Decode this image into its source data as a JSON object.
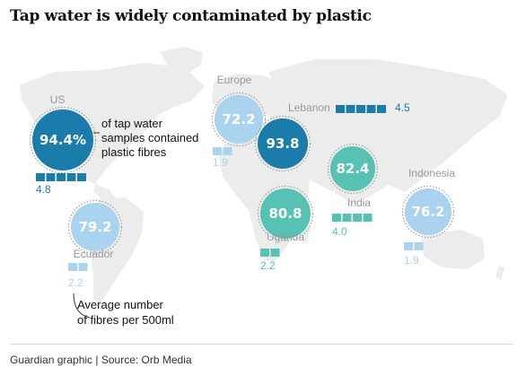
{
  "title": "Tap water is widely contaminated by plastic",
  "footer": "Guardian graphic | Source: Orb Media",
  "annotations": {
    "percent_note": [
      "of tap water",
      "samples contained",
      "plastic fibres"
    ],
    "fibres_note": [
      "Average number",
      "of fibres per 500ml"
    ]
  },
  "colors": {
    "map_land": "#ececec",
    "dark_blue": "#197caa",
    "mid_blue": "#2a8fc4",
    "light_blue": "#a9d3ee",
    "teal": "#56c2b4",
    "label_grey": "#999999"
  },
  "chart_data": {
    "type": "bubble-map",
    "title": "Tap water is widely contaminated by plastic",
    "metric_primary": "% of tap water samples contained plastic fibres",
    "metric_secondary": "Average number of fibres per 500ml",
    "series": [
      {
        "name": "US",
        "percent": "94.4%",
        "fibres": "4.8",
        "fibre_squares": 5,
        "color": "dark_blue"
      },
      {
        "name": "Ecuador",
        "percent": "79.2",
        "fibres": "2.2",
        "fibre_squares": 2,
        "color": "light_blue"
      },
      {
        "name": "Europe",
        "percent": "72.2",
        "fibres": "1.9",
        "fibre_squares": 2,
        "color": "light_blue"
      },
      {
        "name": "Lebanon",
        "percent": "93.8",
        "fibres": "4.5",
        "fibre_squares": 5,
        "color": "dark_blue"
      },
      {
        "name": "Uganda",
        "percent": "80.8",
        "fibres": "2.2",
        "fibre_squares": 2,
        "color": "teal"
      },
      {
        "name": "India",
        "percent": "82.4",
        "fibres": "4.0",
        "fibre_squares": 4,
        "color": "teal"
      },
      {
        "name": "Indonesia",
        "percent": "76.2",
        "fibres": "1.9",
        "fibre_squares": 2,
        "color": "light_blue"
      }
    ]
  }
}
